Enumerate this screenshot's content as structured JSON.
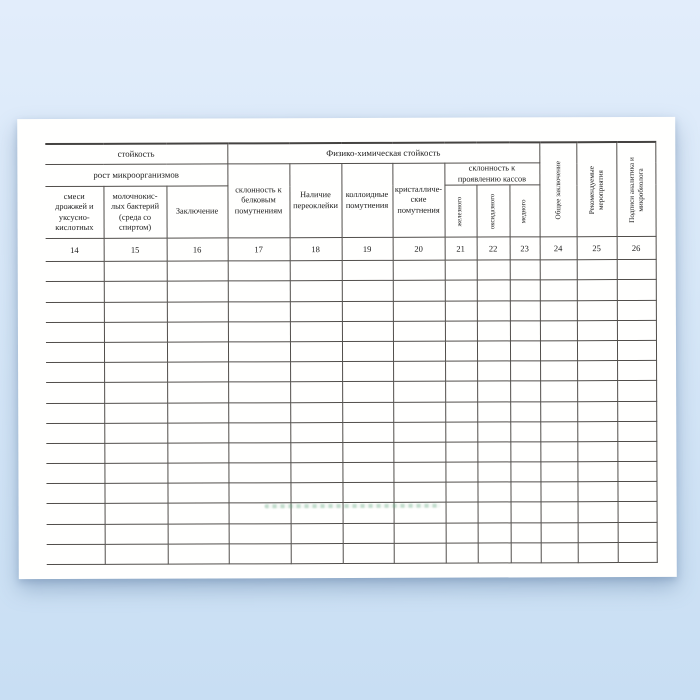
{
  "colors": {
    "background_top": "#e2edfb",
    "background_bottom": "#c8def3",
    "paper": "#fffffe",
    "grid_line": "#514e4b",
    "text": "#1b1b1b",
    "watermark_green": "#62a880"
  },
  "table": {
    "header": {
      "stoikost": "стойкость",
      "rost_mikroorganizmov": "рост микроорганизмов",
      "fiz_him": "Физико-химическая стойкость",
      "sklonnost_kassov": "склонность к\nпроявлению кассов",
      "col14": "смеси\nдрожжей и\nуксусно-\nкислотных",
      "col15": "молочнокис-\nлых бактерий\n(среда со\nспиртом)",
      "col16": "Заключение",
      "col17": "склонность к\nбелковым\nпомутнениям",
      "col18": "Наличие\nпереоклейки",
      "col19": "коллоидные\nпомутнения",
      "col20": "кристалличе-\nские\nпомутнения",
      "col21": "железного",
      "col22": "оксидазного",
      "col23": "медного",
      "col24": "Общее заключение",
      "col25": "Рекомендуемые\nмероприятия",
      "col26": "Подписи аналитика и\nмикробиолога"
    },
    "column_numbers": [
      "14",
      "15",
      "16",
      "17",
      "18",
      "19",
      "20",
      "21",
      "22",
      "23",
      "24",
      "25",
      "26"
    ],
    "data_row_count": 15,
    "data_column_count": 13
  }
}
